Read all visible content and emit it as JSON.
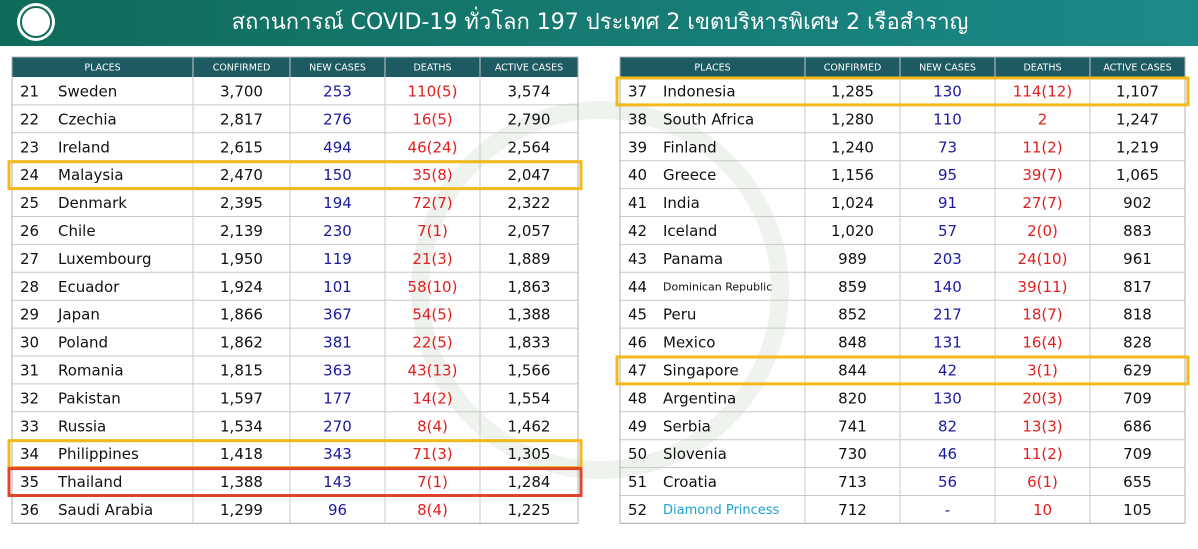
{
  "header": {
    "title": "สถานการณ์ COVID-19 ทั่วโลก 197 ประเทศ 2 เขตบริหารพิเศษ 2 เรือสำราญ"
  },
  "tables": [
    {
      "headers": [
        "PLACES",
        "CONFIRMED",
        "NEW CASES",
        "DEATHS",
        "ACTIVE CASES"
      ],
      "rows": [
        [
          "21",
          "Sweden",
          "3,700",
          "253",
          "110(5)",
          "3,574"
        ],
        [
          "22",
          "Czechia",
          "2,817",
          "276",
          "16(5)",
          "2,790"
        ],
        [
          "23",
          "Ireland",
          "2,615",
          "494",
          "46(24)",
          "2,564"
        ],
        [
          "24",
          "Malaysia",
          "2,470",
          "150",
          "35(8)",
          "2,047"
        ],
        [
          "25",
          "Denmark",
          "2,395",
          "194",
          "72(7)",
          "2,322"
        ],
        [
          "26",
          "Chile",
          "2,139",
          "230",
          "7(1)",
          "2,057"
        ],
        [
          "27",
          "Luxembourg",
          "1,950",
          "119",
          "21(3)",
          "1,889"
        ],
        [
          "28",
          "Ecuador",
          "1,924",
          "101",
          "58(10)",
          "1,863"
        ],
        [
          "29",
          "Japan",
          "1,866",
          "367",
          "54(5)",
          "1,388"
        ],
        [
          "30",
          "Poland",
          "1,862",
          "381",
          "22(5)",
          "1,833"
        ],
        [
          "31",
          "Romania",
          "1,815",
          "363",
          "43(13)",
          "1,566"
        ],
        [
          "32",
          "Pakistan",
          "1,597",
          "177",
          "14(2)",
          "1,554"
        ],
        [
          "33",
          "Russia",
          "1,534",
          "270",
          "8(4)",
          "1,462"
        ],
        [
          "34",
          "Philippines",
          "1,418",
          "343",
          "71(3)",
          "1,305"
        ],
        [
          "35",
          "Thailand",
          "1,388",
          "143",
          "7(1)",
          "1,284"
        ],
        [
          "36",
          "Saudi Arabia",
          "1,299",
          "96",
          "8(4)",
          "1,225"
        ]
      ]
    },
    {
      "headers": [
        "PLACES",
        "CONFIRMED",
        "NEW CASES",
        "DEATHS",
        "ACTIVE CASES"
      ],
      "rows": [
        [
          "37",
          "Indonesia",
          "1,285",
          "130",
          "114(12)",
          "1,107"
        ],
        [
          "38",
          "South Africa",
          "1,280",
          "110",
          "2",
          "1,247"
        ],
        [
          "39",
          "Finland",
          "1,240",
          "73",
          "11(2)",
          "1,219"
        ],
        [
          "40",
          "Greece",
          "1,156",
          "95",
          "39(7)",
          "1,065"
        ],
        [
          "41",
          "India",
          "1,024",
          "91",
          "27(7)",
          "902"
        ],
        [
          "42",
          "Iceland",
          "1,020",
          "57",
          "2(0)",
          "883"
        ],
        [
          "43",
          "Panama",
          "989",
          "203",
          "24(10)",
          "961"
        ],
        [
          "44",
          "Dominican Republic",
          "859",
          "140",
          "39(11)",
          "817"
        ],
        [
          "45",
          "Peru",
          "852",
          "217",
          "18(7)",
          "818"
        ],
        [
          "46",
          "Mexico",
          "848",
          "131",
          "16(4)",
          "828"
        ],
        [
          "47",
          "Singapore",
          "844",
          "42",
          "3(1)",
          "629"
        ],
        [
          "48",
          "Argentina",
          "820",
          "130",
          "20(3)",
          "709"
        ],
        [
          "49",
          "Serbia",
          "741",
          "82",
          "13(3)",
          "686"
        ],
        [
          "50",
          "Slovenia",
          "730",
          "46",
          "11(2)",
          "709"
        ],
        [
          "51",
          "Croatia",
          "713",
          "56",
          "6(1)",
          "655"
        ],
        [
          "52",
          "Diamond Princess",
          "712",
          "-",
          "10",
          "105"
        ]
      ]
    }
  ]
}
